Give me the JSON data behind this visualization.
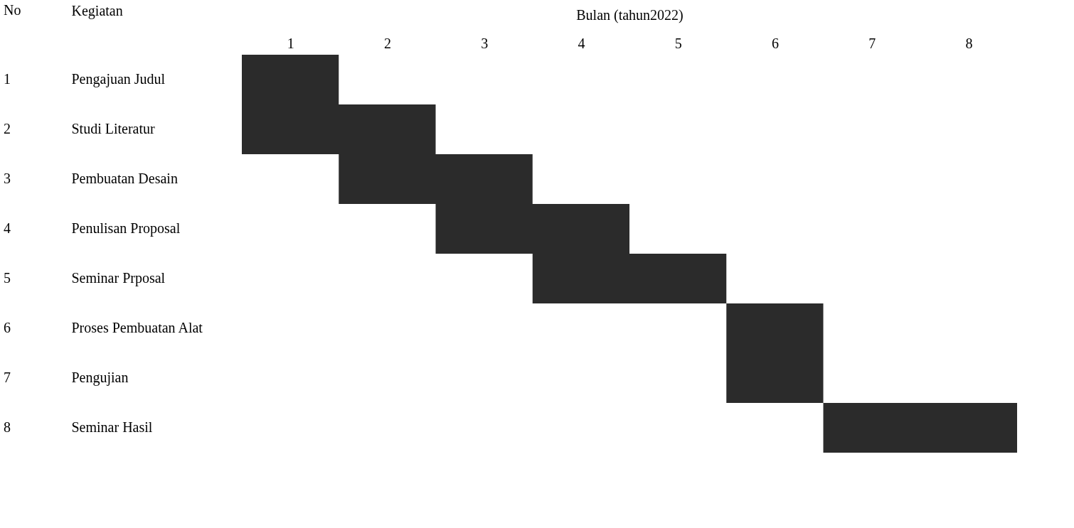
{
  "chart_data": {
    "type": "bar",
    "orientation": "horizontal",
    "xlabel": "Bulan (tahun2022)",
    "ylabel": "Kegiatan",
    "categories": [
      "Pengajuan Judul",
      "Studi Literatur",
      "Pembuatan Desain",
      "Penulisan Proposal",
      "Seminar Prposal",
      "Proses Pembuatan Alat",
      "Pengujian",
      "Seminar Hasil"
    ],
    "base": [
      0.5,
      0.5,
      1.5,
      2.5,
      3.5,
      5.5,
      5.5,
      6.5
    ],
    "values": [
      1,
      2,
      2,
      2,
      2,
      1,
      1,
      2
    ],
    "color": "#2b2b2b",
    "xlim": [
      0.5,
      8.5
    ],
    "xticks": [
      1,
      2,
      3,
      4,
      5,
      6,
      7,
      8
    ],
    "grid": false,
    "annotations": [
      "No",
      "1",
      "2",
      "3",
      "4",
      "5",
      "6",
      "7",
      "8"
    ]
  }
}
